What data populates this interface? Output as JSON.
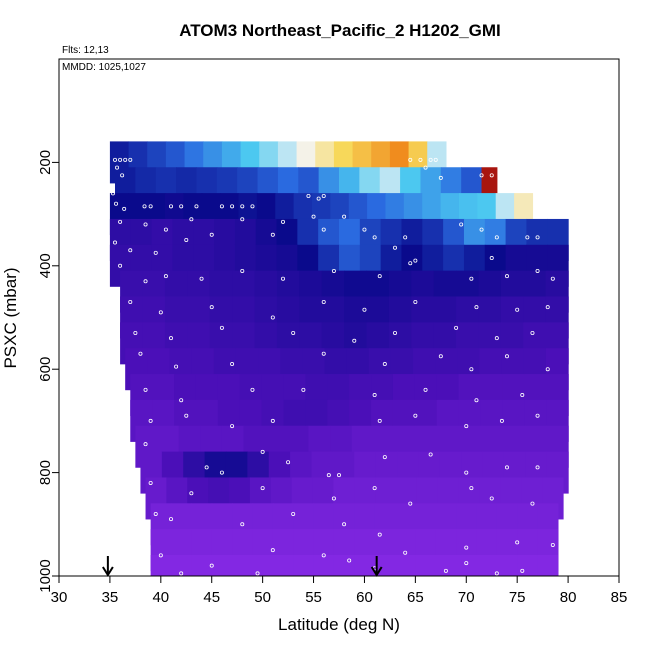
{
  "chart_data": {
    "type": "heatmap",
    "title": "ATOM3 Northeast_Pacific_2 H1202_GMI",
    "flights_label": "Flts: 12,13",
    "dates_label": "MMDD: 1025,1027",
    "xlabel": "Latitude (deg N)",
    "ylabel": "PSXC (mbar)",
    "xlim": [
      30,
      85
    ],
    "ylim": [
      1000,
      0
    ],
    "x_ticks": [
      "30",
      "35",
      "40",
      "45",
      "50",
      "55",
      "60",
      "65",
      "70",
      "75",
      "80",
      "85"
    ],
    "y_ticks": [
      "200",
      "400",
      "600",
      "800",
      "1000"
    ],
    "arrows_lat": [
      34.8,
      61.2
    ],
    "colors": {
      "background": "#8a2be8",
      "low": "#4b0fb8",
      "deep": "#0a0a8c",
      "mid": "#2a6ae0",
      "cyan": "#4cc8f0",
      "white": "#f4f4f4",
      "yellow": "#f7d85a",
      "orange": "#f08c1e",
      "high": "#a8150f"
    },
    "rows": [
      {
        "p": 200,
        "lat_start": 35.0,
        "lat_end": 68.0,
        "values": [
          0.05,
          0.1,
          0.15,
          0.2,
          0.28,
          0.35,
          0.42,
          0.5,
          0.55,
          0.6,
          0.66,
          0.72,
          0.78,
          0.82,
          0.86,
          0.9,
          0.8,
          0.6
        ]
      },
      {
        "p": 250,
        "lat_start": 35.5,
        "lat_end": 71.5,
        "values": [
          0.05,
          0.08,
          0.1,
          0.08,
          0.1,
          0.12,
          0.15,
          0.2,
          0.25,
          0.2,
          0.35,
          0.45,
          0.55,
          0.6,
          0.5,
          0.4,
          0.3,
          0.2
        ]
      },
      {
        "p": 250,
        "lat_start": 71.5,
        "lat_end": 73.0,
        "values": [
          1.0
        ]
      },
      {
        "p": 300,
        "lat_start": 35.0,
        "lat_end": 76.5,
        "values": [
          0.0,
          0.0,
          0.0,
          -0.05,
          0.0,
          0.0,
          0.0,
          0.02,
          0.0,
          0.05,
          0.1,
          0.12,
          0.15,
          0.2,
          0.25,
          0.3,
          0.35,
          0.4,
          0.45,
          0.48,
          0.5,
          0.6,
          0.7
        ]
      },
      {
        "p": 350,
        "lat_start": 35.0,
        "lat_end": 80.0,
        "values": [
          -0.3,
          -0.3,
          -0.35,
          -0.3,
          -0.3,
          -0.25,
          -0.2,
          -0.1,
          0.0,
          0.1,
          0.2,
          0.25,
          0.15,
          0.1,
          0.05,
          0.1,
          0.2,
          0.35,
          0.3,
          0.15,
          0.1,
          0.1
        ]
      },
      {
        "p": 400,
        "lat_start": 35.0,
        "lat_end": 80.0,
        "values": [
          -0.35,
          -0.35,
          -0.35,
          -0.3,
          -0.3,
          -0.25,
          -0.2,
          -0.15,
          -0.1,
          0.0,
          0.1,
          0.2,
          0.15,
          0.05,
          0.0,
          0.05,
          0.1,
          0.05,
          0.0,
          -0.1,
          -0.1,
          -0.1
        ]
      },
      {
        "p": 450,
        "lat_start": 36.0,
        "lat_end": 80.0,
        "values": [
          -0.4,
          -0.4,
          -0.35,
          -0.35,
          -0.3,
          -0.3,
          -0.25,
          -0.2,
          -0.15,
          -0.1,
          -0.05,
          -0.05,
          -0.1,
          -0.15,
          -0.1,
          -0.1,
          -0.15,
          -0.2,
          -0.2,
          -0.25
        ]
      },
      {
        "p": 500,
        "lat_start": 36.0,
        "lat_end": 80.0,
        "values": [
          -0.45,
          -0.45,
          -0.4,
          -0.4,
          -0.35,
          -0.35,
          -0.3,
          -0.25,
          -0.2,
          -0.2,
          -0.15,
          -0.15,
          -0.2,
          -0.25,
          -0.25,
          -0.3,
          -0.3,
          -0.35,
          -0.35,
          -0.35
        ]
      },
      {
        "p": 550,
        "lat_start": 36.0,
        "lat_end": 80.0,
        "values": [
          -0.5,
          -0.5,
          -0.45,
          -0.45,
          -0.4,
          -0.4,
          -0.35,
          -0.3,
          -0.3,
          -0.25,
          -0.2,
          -0.25,
          -0.3,
          -0.35,
          -0.35,
          -0.4,
          -0.4,
          -0.4,
          -0.45,
          -0.45
        ]
      },
      {
        "p": 600,
        "lat_start": 36.5,
        "lat_end": 80.0,
        "values": [
          -0.55,
          -0.55,
          -0.5,
          -0.5,
          -0.45,
          -0.45,
          -0.45,
          -0.4,
          -0.4,
          -0.35,
          -0.35,
          -0.4,
          -0.4,
          -0.45,
          -0.45,
          -0.45,
          -0.5,
          -0.5,
          -0.5,
          -0.55
        ]
      },
      {
        "p": 650,
        "lat_start": 37.0,
        "lat_end": 80.0,
        "values": [
          -0.6,
          -0.6,
          -0.55,
          -0.55,
          -0.55,
          -0.5,
          -0.5,
          -0.5,
          -0.45,
          -0.45,
          -0.5,
          -0.5,
          -0.55,
          -0.55,
          -0.55,
          -0.6,
          -0.6,
          -0.6,
          -0.6,
          -0.6
        ]
      },
      {
        "p": 700,
        "lat_start": 37.0,
        "lat_end": 80.0,
        "values": [
          -0.65,
          -0.65,
          -0.6,
          -0.6,
          -0.55,
          -0.55,
          -0.5,
          -0.45,
          -0.45,
          -0.5,
          -0.55,
          -0.6,
          -0.6,
          -0.6,
          -0.65,
          -0.65,
          -0.65,
          -0.65,
          -0.65,
          -0.65
        ]
      },
      {
        "p": 750,
        "lat_start": 37.5,
        "lat_end": 80.0,
        "values": [
          -0.7,
          -0.7,
          -0.65,
          -0.65,
          -0.65,
          -0.6,
          -0.6,
          -0.6,
          -0.65,
          -0.65,
          -0.7,
          -0.7,
          -0.7,
          -0.7,
          -0.7,
          -0.7,
          -0.7,
          -0.7,
          -0.7,
          -0.7
        ]
      },
      {
        "p": 800,
        "lat_start": 38.0,
        "lat_end": 80.0,
        "values": [
          -0.7,
          -0.55,
          -0.3,
          -0.1,
          -0.1,
          -0.3,
          -0.55,
          -0.65,
          -0.7,
          -0.7,
          -0.75,
          -0.75,
          -0.75,
          -0.75,
          -0.75,
          -0.75,
          -0.75,
          -0.75,
          -0.75,
          -0.75
        ]
      },
      {
        "p": 850,
        "lat_start": 38.5,
        "lat_end": 79.5,
        "values": [
          -0.75,
          -0.65,
          -0.55,
          -0.5,
          -0.55,
          -0.65,
          -0.7,
          -0.75,
          -0.75,
          -0.8,
          -0.8,
          -0.8,
          -0.8,
          -0.8,
          -0.8,
          -0.8,
          -0.8,
          -0.8,
          -0.8,
          -0.8
        ]
      },
      {
        "p": 900,
        "lat_start": 39.0,
        "lat_end": 79.0,
        "values": [
          -0.85,
          -0.85,
          -0.85,
          -0.85,
          -0.85,
          -0.85,
          -0.85,
          -0.85,
          -0.85,
          -0.85,
          -0.85,
          -0.85,
          -0.85,
          -0.85,
          -0.85,
          -0.85,
          -0.85,
          -0.85,
          -0.85,
          -0.85
        ]
      },
      {
        "p": 950,
        "lat_start": 39.0,
        "lat_end": 79.0,
        "values": [
          -0.9,
          -0.9,
          -0.9,
          -0.9,
          -0.9,
          -0.9,
          -0.9,
          -0.9,
          -0.9,
          -0.9,
          -0.9,
          -0.9,
          -0.9,
          -0.9,
          -0.9,
          -0.9,
          -0.9,
          -0.9,
          -0.9,
          -0.9
        ]
      },
      {
        "p": 1000,
        "lat_start": 39.0,
        "lat_end": 79.0,
        "values": [
          -0.95,
          -0.95,
          -0.95,
          -0.95,
          -0.95,
          -0.95,
          -0.95,
          -0.95,
          -0.95,
          -0.95,
          -0.95,
          -0.95,
          -0.95,
          -0.95,
          -0.95,
          -0.95,
          -0.95,
          -0.95,
          -0.95,
          -0.95
        ]
      }
    ],
    "points": [
      [
        35.5,
        195
      ],
      [
        36.0,
        195
      ],
      [
        36.5,
        195
      ],
      [
        37.0,
        195
      ],
      [
        35.7,
        210
      ],
      [
        36.2,
        225
      ],
      [
        35.3,
        260
      ],
      [
        35.6,
        280
      ],
      [
        36.4,
        290
      ],
      [
        38.4,
        285
      ],
      [
        39.0,
        285
      ],
      [
        41.0,
        285
      ],
      [
        42.0,
        285
      ],
      [
        43.5,
        285
      ],
      [
        46.0,
        285
      ],
      [
        47.0,
        285
      ],
      [
        48.0,
        285
      ],
      [
        49.0,
        285
      ],
      [
        54.5,
        265
      ],
      [
        56.0,
        265
      ],
      [
        55.5,
        270
      ],
      [
        64.5,
        195
      ],
      [
        65.5,
        195
      ],
      [
        66.5,
        195
      ],
      [
        67.0,
        195
      ],
      [
        67.5,
        230
      ],
      [
        66.0,
        210
      ],
      [
        71.5,
        225
      ],
      [
        72.5,
        225
      ],
      [
        36.0,
        315
      ],
      [
        38.5,
        320
      ],
      [
        40.5,
        330
      ],
      [
        43.0,
        310
      ],
      [
        48.0,
        310
      ],
      [
        52.0,
        315
      ],
      [
        55.0,
        305
      ],
      [
        58.0,
        305
      ],
      [
        35.5,
        355
      ],
      [
        37.0,
        370
      ],
      [
        39.5,
        375
      ],
      [
        42.5,
        350
      ],
      [
        45.0,
        340
      ],
      [
        51.0,
        340
      ],
      [
        56.0,
        330
      ],
      [
        60.0,
        330
      ],
      [
        61.0,
        345
      ],
      [
        63.0,
        365
      ],
      [
        64.0,
        345
      ],
      [
        69.5,
        320
      ],
      [
        71.5,
        330
      ],
      [
        73.0,
        345
      ],
      [
        76.0,
        345
      ],
      [
        77.0,
        345
      ],
      [
        36.0,
        400
      ],
      [
        38.5,
        430
      ],
      [
        40.5,
        420
      ],
      [
        44.0,
        425
      ],
      [
        48.0,
        410
      ],
      [
        52.0,
        425
      ],
      [
        57.0,
        410
      ],
      [
        61.5,
        420
      ],
      [
        64.5,
        395
      ],
      [
        65.0,
        390
      ],
      [
        70.5,
        425
      ],
      [
        72.5,
        385
      ],
      [
        74.0,
        420
      ],
      [
        77.0,
        410
      ],
      [
        78.5,
        425
      ],
      [
        37.0,
        470
      ],
      [
        40.0,
        490
      ],
      [
        45.0,
        480
      ],
      [
        51.0,
        500
      ],
      [
        56.0,
        470
      ],
      [
        60.0,
        485
      ],
      [
        65.0,
        470
      ],
      [
        71.0,
        480
      ],
      [
        75.0,
        485
      ],
      [
        78.0,
        480
      ],
      [
        37.5,
        530
      ],
      [
        41.0,
        540
      ],
      [
        46.0,
        520
      ],
      [
        53.0,
        530
      ],
      [
        59.0,
        545
      ],
      [
        63.0,
        530
      ],
      [
        69.0,
        520
      ],
      [
        73.0,
        540
      ],
      [
        76.5,
        530
      ],
      [
        38.0,
        570
      ],
      [
        41.5,
        595
      ],
      [
        47.0,
        590
      ],
      [
        56.0,
        570
      ],
      [
        62.0,
        590
      ],
      [
        67.5,
        575
      ],
      [
        70.5,
        600
      ],
      [
        74.0,
        575
      ],
      [
        78.0,
        600
      ],
      [
        38.5,
        640
      ],
      [
        42.0,
        660
      ],
      [
        49.0,
        640
      ],
      [
        54.0,
        640
      ],
      [
        61.0,
        650
      ],
      [
        66.0,
        640
      ],
      [
        71.0,
        660
      ],
      [
        75.5,
        650
      ],
      [
        39.0,
        700
      ],
      [
        42.5,
        690
      ],
      [
        47.0,
        710
      ],
      [
        51.0,
        700
      ],
      [
        61.5,
        700
      ],
      [
        65.0,
        690
      ],
      [
        70.0,
        710
      ],
      [
        73.5,
        700
      ],
      [
        77.0,
        690
      ],
      [
        38.5,
        745
      ],
      [
        44.5,
        790
      ],
      [
        46.0,
        800
      ],
      [
        50.0,
        760
      ],
      [
        52.5,
        780
      ],
      [
        56.5,
        805
      ],
      [
        57.5,
        805
      ],
      [
        62.0,
        770
      ],
      [
        66.5,
        765
      ],
      [
        70.0,
        800
      ],
      [
        74.0,
        790
      ],
      [
        77.0,
        790
      ],
      [
        39.0,
        820
      ],
      [
        43.0,
        840
      ],
      [
        50.0,
        830
      ],
      [
        57.0,
        850
      ],
      [
        61.0,
        830
      ],
      [
        64.5,
        860
      ],
      [
        70.5,
        830
      ],
      [
        72.5,
        850
      ],
      [
        76.5,
        860
      ],
      [
        39.5,
        880
      ],
      [
        41.0,
        890
      ],
      [
        48.0,
        900
      ],
      [
        53.0,
        880
      ],
      [
        58.0,
        900
      ],
      [
        61.5,
        920
      ],
      [
        70.0,
        945
      ],
      [
        75.0,
        935
      ],
      [
        78.5,
        940
      ],
      [
        40.0,
        960
      ],
      [
        45.0,
        980
      ],
      [
        51.0,
        950
      ],
      [
        56.0,
        960
      ],
      [
        58.5,
        970
      ],
      [
        64.0,
        955
      ],
      [
        70.0,
        975
      ],
      [
        75.5,
        990
      ],
      [
        42.0,
        995
      ],
      [
        49.5,
        995
      ],
      [
        61.0,
        985
      ],
      [
        68.0,
        990
      ],
      [
        73.0,
        995
      ]
    ]
  }
}
